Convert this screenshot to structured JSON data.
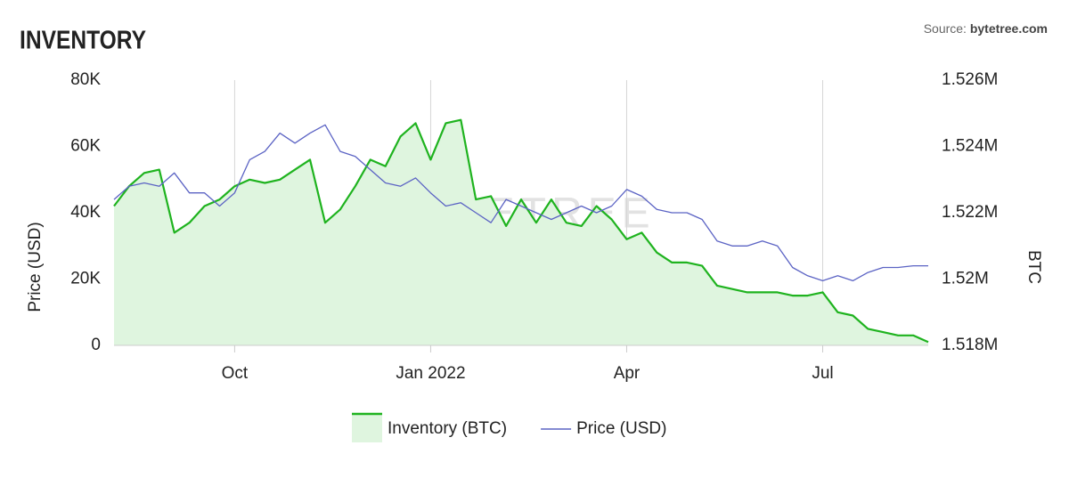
{
  "chart_data": {
    "type": "line",
    "title": "INVENTORY",
    "source": {
      "label": "Source:",
      "name": "bytetree.com"
    },
    "watermark": "BYTETREE",
    "y_label": "Price (USD)",
    "y2_label": "BTC",
    "categories": [
      null,
      null,
      null,
      null,
      null,
      null,
      null,
      null,
      "Oct",
      null,
      null,
      null,
      null,
      null,
      null,
      null,
      null,
      null,
      null,
      null,
      null,
      "Jan 2022",
      null,
      null,
      null,
      null,
      null,
      null,
      null,
      null,
      null,
      null,
      null,
      null,
      "Apr",
      null,
      null,
      null,
      null,
      null,
      null,
      null,
      null,
      null,
      null,
      null,
      null,
      "Jul",
      null,
      null,
      null,
      null,
      null,
      null,
      null
    ],
    "ylim": [
      0,
      80000
    ],
    "yticks": [
      0,
      {
        "value": 20000,
        "label": "20K"
      },
      {
        "value": 40000,
        "label": "40K"
      },
      {
        "value": 60000,
        "label": "60K"
      },
      {
        "value": 80000,
        "label": "80K"
      }
    ],
    "y2lim": [
      1518000,
      1526000
    ],
    "y2ticks": [
      {
        "value": 1518000,
        "label": "1.518M"
      },
      {
        "value": 1520000,
        "label": "1.52M"
      },
      {
        "value": 1522000,
        "label": "1.522M"
      },
      {
        "value": 1524000,
        "label": "1.524M"
      },
      {
        "value": 1526000,
        "label": "1.526M"
      }
    ],
    "grid": "x",
    "series": [
      {
        "name": "Inventory (BTC)",
        "color": "#1fb31f",
        "fill": "#dff5df",
        "axis": "y2",
        "style": "area",
        "values": [
          1522200,
          1522800,
          1523200,
          1523300,
          1521400,
          1521700,
          1522200,
          1522400,
          1522800,
          1523000,
          1522900,
          1523000,
          1523300,
          1523600,
          1521700,
          1522100,
          1522800,
          1523600,
          1523400,
          1524300,
          1524700,
          1523600,
          1524700,
          1524800,
          1522400,
          1522500,
          1521600,
          1522400,
          1521700,
          1522400,
          1521700,
          1521600,
          1522200,
          1521800,
          1521200,
          1521400,
          1520800,
          1520500,
          1520500,
          1520400,
          1519800,
          1519700,
          1519600,
          1519600,
          1519600,
          1519500,
          1519500,
          1519600,
          1519000,
          1518900,
          1518500,
          1518400,
          1518300,
          1518300,
          1518100
        ]
      },
      {
        "name": "Price (USD)",
        "color": "#5b63c4",
        "style": "line",
        "values": [
          44000,
          48000,
          49000,
          48000,
          52000,
          46000,
          46000,
          42000,
          46000,
          56000,
          58500,
          64000,
          61000,
          64000,
          66500,
          58500,
          57000,
          53000,
          49000,
          48000,
          50500,
          46000,
          42000,
          43000,
          40000,
          37000,
          44000,
          42000,
          40000,
          38000,
          40000,
          42000,
          40000,
          42000,
          47000,
          45000,
          41000,
          40000,
          40000,
          38000,
          31500,
          30000,
          30000,
          31500,
          30000,
          23500,
          21000,
          19500,
          21000,
          19500,
          22000,
          23500,
          23500,
          24000,
          24000
        ]
      }
    ]
  }
}
